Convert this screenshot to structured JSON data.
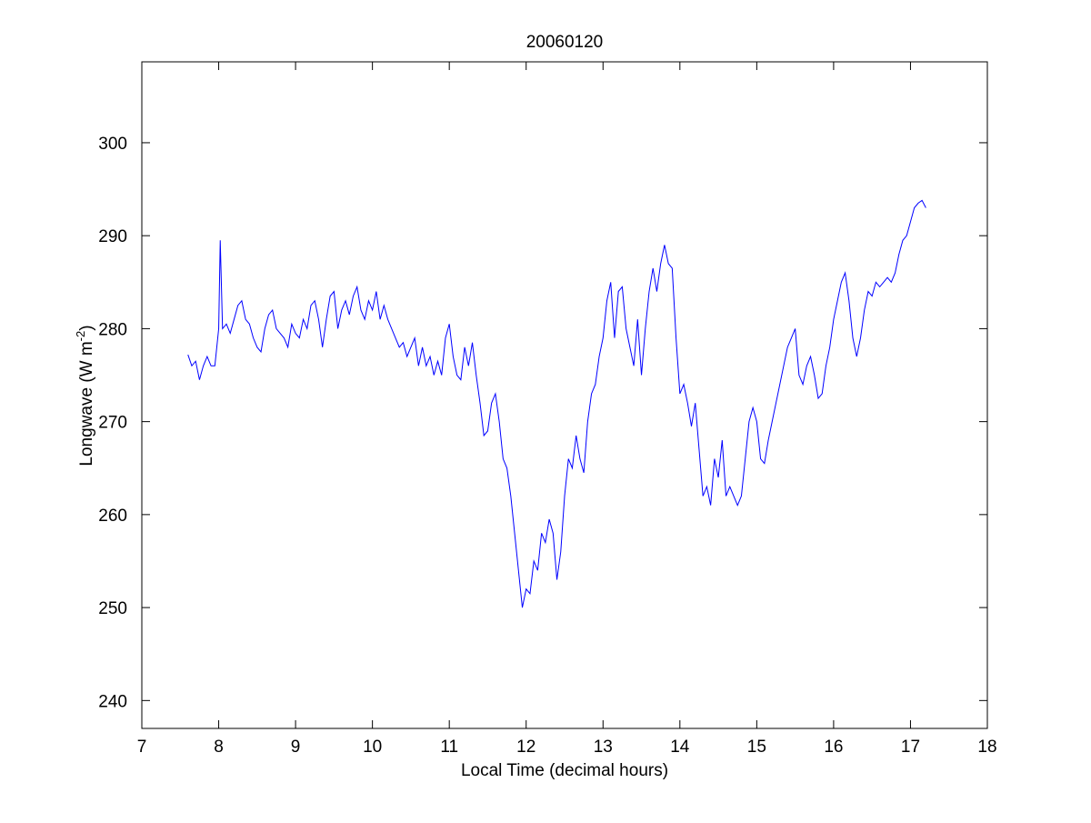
{
  "chart_data": {
    "type": "line",
    "title": "20060120",
    "x_label": "Local Time (decimal hours)",
    "y_label": {
      "text": "Longwave (W m",
      "superscript": "-2",
      "suffix": ")"
    },
    "xlim": [
      7,
      18
    ],
    "xticks": [
      7,
      8,
      9,
      10,
      11,
      12,
      13,
      14,
      15,
      16,
      17,
      18
    ],
    "ylim": [
      237,
      308.7
    ],
    "yticks": [
      240,
      250,
      260,
      270,
      280,
      290,
      300
    ],
    "series": [
      {
        "color": "#0000ff",
        "x": [
          7.6,
          7.65,
          7.7,
          7.75,
          7.8,
          7.85,
          7.9,
          7.95,
          8.0,
          8.02,
          8.05,
          8.1,
          8.15,
          8.2,
          8.25,
          8.3,
          8.35,
          8.4,
          8.45,
          8.5,
          8.55,
          8.6,
          8.65,
          8.7,
          8.75,
          8.8,
          8.85,
          8.9,
          8.95,
          9.0,
          9.05,
          9.1,
          9.15,
          9.2,
          9.25,
          9.3,
          9.35,
          9.4,
          9.45,
          9.5,
          9.55,
          9.6,
          9.65,
          9.7,
          9.75,
          9.8,
          9.85,
          9.9,
          9.95,
          10.0,
          10.05,
          10.1,
          10.15,
          10.2,
          10.25,
          10.3,
          10.35,
          10.4,
          10.45,
          10.5,
          10.55,
          10.6,
          10.65,
          10.7,
          10.75,
          10.8,
          10.85,
          10.9,
          10.95,
          11.0,
          11.05,
          11.1,
          11.15,
          11.2,
          11.25,
          11.3,
          11.35,
          11.4,
          11.45,
          11.5,
          11.55,
          11.6,
          11.65,
          11.7,
          11.75,
          11.8,
          11.85,
          11.9,
          11.95,
          12.0,
          12.05,
          12.1,
          12.15,
          12.2,
          12.25,
          12.3,
          12.35,
          12.4,
          12.45,
          12.5,
          12.55,
          12.6,
          12.65,
          12.7,
          12.75,
          12.8,
          12.85,
          12.9,
          12.95,
          13.0,
          13.05,
          13.1,
          13.15,
          13.2,
          13.25,
          13.3,
          13.35,
          13.4,
          13.45,
          13.5,
          13.55,
          13.6,
          13.65,
          13.7,
          13.75,
          13.8,
          13.85,
          13.9,
          13.95,
          14.0,
          14.05,
          14.1,
          14.15,
          14.2,
          14.25,
          14.3,
          14.35,
          14.4,
          14.45,
          14.5,
          14.55,
          14.6,
          14.65,
          14.7,
          14.75,
          14.8,
          14.85,
          14.9,
          14.95,
          15.0,
          15.05,
          15.1,
          15.15,
          15.2,
          15.25,
          15.3,
          15.35,
          15.4,
          15.45,
          15.5,
          15.55,
          15.6,
          15.65,
          15.7,
          15.75,
          15.8,
          15.85,
          15.9,
          15.95,
          16.0,
          16.05,
          16.1,
          16.15,
          16.2,
          16.25,
          16.3,
          16.35,
          16.4,
          16.45,
          16.5,
          16.55,
          16.6,
          16.65,
          16.7,
          16.75,
          16.8,
          16.85,
          16.9,
          16.95,
          17.0,
          17.05,
          17.1,
          17.15,
          17.2
        ],
        "values": [
          277.2,
          276,
          276.5,
          274.5,
          276,
          277,
          276,
          276,
          280,
          289.5,
          280,
          280.5,
          279.5,
          281,
          282.5,
          283,
          281,
          280.5,
          279,
          278,
          277.5,
          280,
          281.5,
          282,
          280,
          279.5,
          279,
          278,
          280.5,
          279.5,
          279,
          281,
          280,
          282.5,
          283,
          281,
          278,
          281,
          283.5,
          284,
          280,
          282,
          283,
          281.5,
          283.5,
          284.5,
          282,
          281,
          283,
          282,
          284,
          281,
          282.5,
          281,
          280,
          279,
          278,
          278.5,
          277,
          278,
          279,
          276,
          278,
          276,
          277,
          275,
          276.5,
          275,
          279,
          280.5,
          277,
          275,
          274.5,
          278,
          276,
          278.5,
          275,
          272,
          268.5,
          269,
          272,
          273,
          270,
          266,
          265,
          262,
          258,
          254,
          250,
          252,
          251.5,
          255,
          254,
          258,
          257,
          259.5,
          258,
          253,
          256,
          262,
          266,
          265,
          268.5,
          266,
          264.5,
          270,
          273,
          274,
          277,
          279,
          283,
          285,
          279,
          284,
          284.5,
          280,
          278,
          276,
          281,
          275,
          280,
          284,
          286.5,
          284,
          287,
          289,
          287,
          286.5,
          279,
          273,
          274,
          272,
          269.5,
          272,
          267,
          262,
          263,
          261,
          266,
          264,
          268,
          262,
          263,
          262,
          261,
          262,
          266,
          270,
          271.5,
          270,
          266,
          265.5,
          268,
          270,
          272,
          274,
          276,
          278,
          279,
          280,
          275,
          274,
          276,
          277,
          275,
          272.5,
          273,
          276,
          278,
          281,
          283,
          285,
          286,
          283,
          279,
          277,
          279,
          282,
          284,
          283.5,
          285,
          284.5,
          285,
          285.5,
          285,
          286,
          288,
          289.5,
          290,
          291.5,
          293,
          293.5,
          293.8,
          293
        ]
      }
    ]
  }
}
